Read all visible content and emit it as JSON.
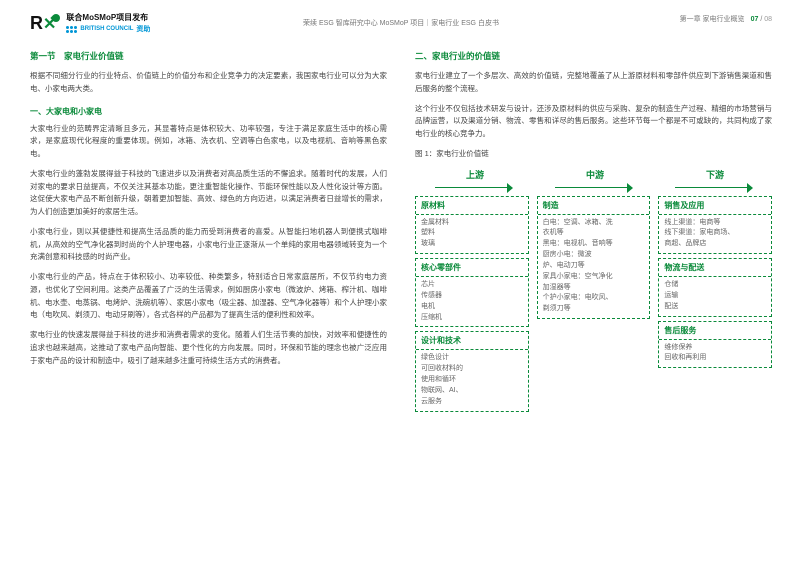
{
  "header": {
    "project": "联合MoSMoP项目发布",
    "british_council": "BRITISH COUNCIL",
    "sponsor": "资助",
    "center": "荣续 ESG 智库研究中心 MoSMoP 项目｜家电行业 ESG 白皮书",
    "chapter": "第一章 家电行业概览",
    "page_current": "07",
    "page_total": "08"
  },
  "left": {
    "title": "第一节　家电行业价值链",
    "intro": "根据不同细分行业的行业特点、价值链上的价值分布和企业竞争力的决定要素，我国家电行业可以分为大家电、小家电两大类。",
    "sub1": "一、大家电和小家电",
    "p1": "大家电行业的范畴界定清晰且多元，其显著特点是体积较大、功率较强，专注于满足家庭生活中的核心需求，是家庭现代化程度的重要体现。例如，冰箱、洗衣机、空调等白色家电，以及电视机、音响等黑色家电。",
    "p2": "大家电行业的蓬勃发展得益于科技的飞速进步以及消费者对高品质生活的不懈追求。随着时代的发展，人们对家电的要求日益提高，不仅关注其基本功能，更注重智能化操作、节能环保性能以及人性化设计等方面。这促使大家电产品不断创新升级，朝着更加智能、高效、绿色的方向迈进，以满足消费者日益增长的需求，为人们创造更加美好的家居生活。",
    "p3": "小家电行业，则以其便捷性和提高生活品质的能力而受到消费者的喜爱。从智能扫地机器人到便携式咖啡机，从高效的空气净化器到时尚的个人护理电器，小家电行业正逐渐从一个单纯的家用电器领域转变为一个充满创意和科技感的时尚产业。",
    "p4": "小家电行业的产品，特点在于体积较小、功率较低、种类繁多，特别适合日常家庭居所，不仅节约电力资源，也优化了空间利用。这类产品覆盖了广泛的生活需求，例如厨房小家电（微波炉、烤箱、榨汁机、咖啡机、电水壶、电蒸锅、电烤炉、洗碗机等）、家居小家电（吸尘器、加湿器、空气净化器等）和个人护理小家电（电吹风、剃须刀、电动牙刷等），各式各样的产品都为了提高生活的便利性和效率。",
    "p5": "家电行业的快速发展得益于科技的进步和消费者需求的变化。随着人们生活节奏的加快，对效率和便捷性的追求也越来越高，这推动了家电产品向智能、更个性化的方向发展。同时，环保和节能的理念也被广泛应用于家电产品的设计和制造中，吸引了越来越多注重可持续生活方式的消费者。"
  },
  "right": {
    "title": "二、家电行业的价值链",
    "p1": "家电行业建立了一个多层次、高效的价值链，完整地覆盖了从上游原材料和零部件供应到下游销售渠道和售后服务的整个流程。",
    "p2": "这个行业不仅包括技术研发与设计，还涉及原材料的供应与采购、复杂的制造生产过程、精细的市场营销与品牌运营，以及渠道分销、物流、零售和详尽的售后服务。这些环节每一个都是不可或缺的，共同构成了家电行业的核心竞争力。",
    "figcap": "图 1：家电行业价值链",
    "streams": {
      "up": "上游",
      "mid": "中游",
      "down": "下游"
    },
    "up": {
      "b1": {
        "title": "原材料",
        "items": "金属材料\n塑料\n玻璃"
      },
      "b2": {
        "title": "核心零部件",
        "items": "芯片\n传感器\n电机\n压缩机"
      },
      "b3": {
        "title": "设计和技术",
        "items": "绿色设计\n可回收材料的\n使用和循环\n物联网、AI、\n云服务"
      }
    },
    "mid": {
      "b1": {
        "title": "制造",
        "items": "白电：空调、冰箱、洗\n衣机等\n黑电：电视机、音响等\n厨房小电：微波\n炉、电动刀等\n家具小家电：空气净化\n加湿器等\n个护小家电：电吹风、\n剃须刀等"
      }
    },
    "down": {
      "b1": {
        "title": "销售及应用",
        "items": "线上渠道：电商等\n线下渠道：家电商场、\n商超、品牌店"
      },
      "b2": {
        "title": "物流与配送",
        "items": "仓储\n运输\n配送"
      },
      "b3": {
        "title": "售后服务",
        "items": "维修保养\n回收和再利用"
      }
    }
  },
  "colors": {
    "accent": "#0a8a3a",
    "blue": "#0096d6",
    "text": "#444",
    "muted": "#777"
  }
}
